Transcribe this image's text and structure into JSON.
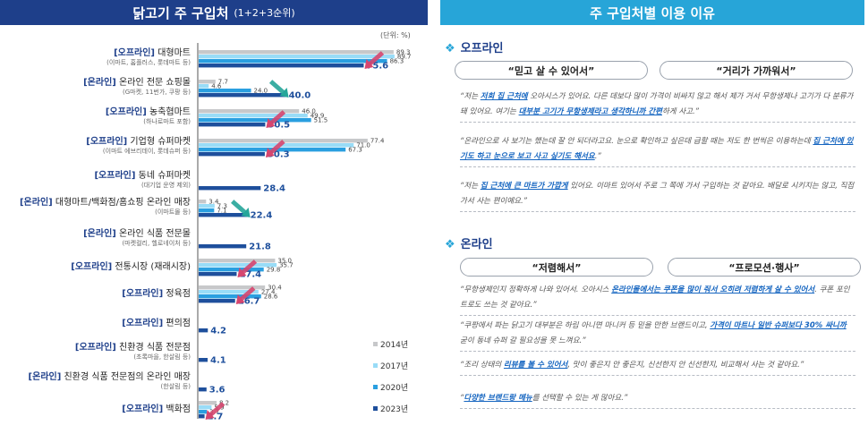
{
  "left_title": "닭고기 주 구입처",
  "left_subtitle": "(1+2+3순위)",
  "unit": "(단위: %)",
  "right_title": "주 구입처별 이용 이유",
  "chart_data": {
    "type": "bar",
    "orientation": "horizontal",
    "title": "닭고기 주 구입처 (1+2+3순위)",
    "unit": "(단위: %)",
    "series": [
      {
        "name": "2014년",
        "color": "#c7c8ca",
        "values": [
          89.3,
          7.7,
          46.0,
          77.4,
          null,
          3.4,
          null,
          35.0,
          30.4,
          null,
          null,
          null,
          8.2
        ]
      },
      {
        "name": "2017년",
        "color": "#99dcf7",
        "values": [
          89.7,
          4.6,
          49.9,
          71.0,
          null,
          7.3,
          null,
          35.7,
          27.4,
          null,
          null,
          null,
          5.9
        ]
      },
      {
        "name": "2020년",
        "color": "#2a9fe0",
        "values": [
          86.3,
          24.0,
          51.5,
          67.3,
          null,
          7.1,
          null,
          29.8,
          28.6,
          null,
          null,
          null,
          3.7
        ]
      },
      {
        "name": "2023년",
        "color": "#1e4f9c",
        "values": [
          75.6,
          40.0,
          30.5,
          30.3,
          28.4,
          22.4,
          21.8,
          17.4,
          16.7,
          4.2,
          4.1,
          3.6,
          2.7
        ]
      }
    ],
    "categories": [
      {
        "tag": "[오프라인]",
        "name": "대형마트",
        "note": "(이마트, 홈플러스, 롯데마트 등)",
        "trend": "down"
      },
      {
        "tag": "[온라인]",
        "name": "온라인 전문 쇼핑몰",
        "note": "(G마켓, 11번가, 쿠팡 등)",
        "trend": "up"
      },
      {
        "tag": "[오프라인]",
        "name": "농축협마트",
        "note": "(하나로마트 포함)",
        "trend": "down"
      },
      {
        "tag": "[오프라인]",
        "name": "기업형 슈퍼마켓",
        "note": "(이마트 에브리데이, 롯데슈퍼 등)",
        "trend": "down"
      },
      {
        "tag": "[오프라인]",
        "name": "동네 슈퍼마켓",
        "note": "(대기업 운영 제외)",
        "trend": ""
      },
      {
        "tag": "[온라인]",
        "name": "대형마트/백화점/홈쇼핑 온라인 매장",
        "note": "(이마트몰 등)",
        "trend": "up"
      },
      {
        "tag": "[온라인]",
        "name": "온라인 식품 전문몰",
        "note": "(마켓컬리, 헬로네이처 등)",
        "trend": ""
      },
      {
        "tag": "[오프라인]",
        "name": "전통시장 (재래시장)",
        "note": "",
        "trend": "down"
      },
      {
        "tag": "[오프라인]",
        "name": "정육점",
        "note": "",
        "trend": "down"
      },
      {
        "tag": "[오프라인]",
        "name": "편의점",
        "note": "",
        "trend": ""
      },
      {
        "tag": "[오프라인]",
        "name": "친환경 식품 전문점",
        "note": "(초록마을, 한살림 등)",
        "trend": ""
      },
      {
        "tag": "[온라인]",
        "name": "친환경 식품 전문점의 온라인 매장",
        "note": "(한살림 등)",
        "trend": ""
      },
      {
        "tag": "[오프라인]",
        "name": "백화점",
        "note": "",
        "trend": "down"
      }
    ]
  },
  "offline": {
    "heading": "오프라인",
    "pill1": "“믿고 살 수 있어서”",
    "pill2": "“거리가 가까워서”",
    "q1": {
      "a": "“저는 ",
      "b": "저희 집 근처에",
      "c": " 오아시스가 있어요. 다른 데보다 많이 가격이 비싸지 않고 해서 제가 거서 무항생제나 고기가 다 분류가 돼 있어요. 여기는 ",
      "d": "대부분 고기가 무항생제라고 생각하니까 간편",
      "e": "하게 사고.”"
    },
    "q2": {
      "a": "“온라인으로 사 보기는 했는데 잘 안 되더라고요. 눈으로 확인하고 싶은데 급할 때는 저도 한 번씩은 이용하는데 ",
      "b": "집 근처에 있기도 하고 눈으로 보고 사고 싶기도 해서요",
      "c": ".”"
    },
    "q3": {
      "a": "“저는 ",
      "b": "집 근처에 큰 마트가 가깝게",
      "c": " 있어요. 이마트 있어서 주로 그 쪽에 가서 구입하는 것 같아요. 배달로 시키지는 않고, 직접 가서 사는 편이예요.”"
    }
  },
  "online": {
    "heading": "온라인",
    "pill1": "“저렴해서”",
    "pill2": "“프로모션·행사”",
    "q1": {
      "a": "“무항생제인지 정확하게 나와 있어서. 오아시스 ",
      "b": "온라인몰에서는 쿠폰을 많이 줘서 오히려 저렴하게 살 수 있어서",
      "c": ". 쿠폰 포인트로도 쓰는 것 같아요.”"
    },
    "q2": {
      "a": "“쿠팡에서 파는 닭고기 대부분은 하림 아니면 마니커 등 믿을 만한 브랜드이고, ",
      "b": "가격이 마트나 일반 슈퍼보다 30% 싸니까",
      "c": " 굳이 동네 슈퍼 갈 필요성을 못 느껴요.”"
    },
    "q3": {
      "a": "“조리 상태의 ",
      "b": "리뷰를 볼 수 있어서",
      "c": ", 맛이 좋은지 안 좋은지, 신선한지 안 신선한지, 비교해서 사는 것 같아요.”"
    },
    "q4": {
      "a": "“",
      "b": "다양한 브랜드랑 메뉴",
      "c": "를 선택할 수 있는 게 많아요.”"
    }
  }
}
